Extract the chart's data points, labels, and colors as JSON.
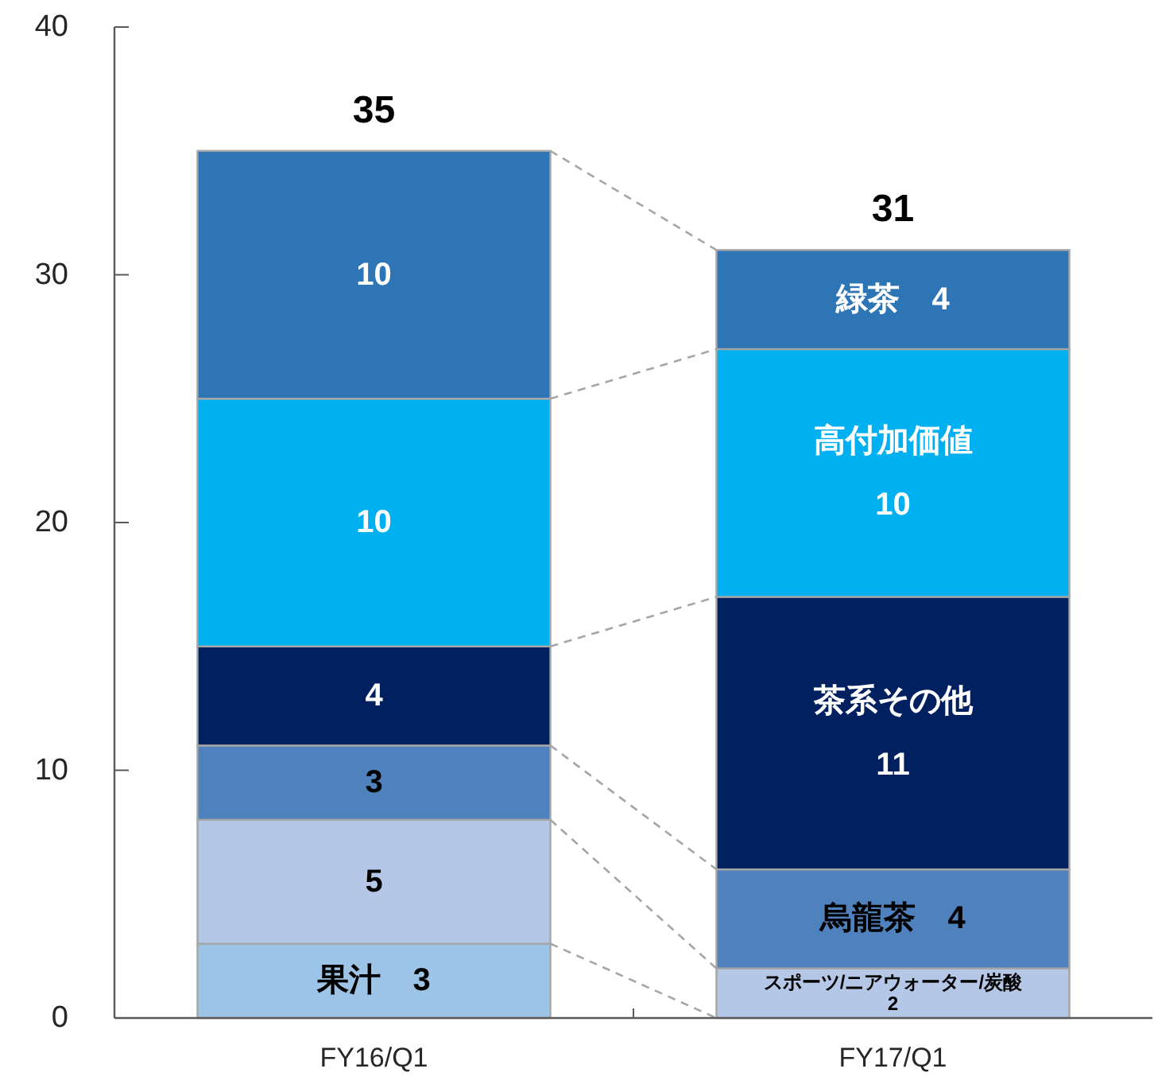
{
  "chart_data": {
    "type": "bar",
    "stacked": true,
    "categories": [
      "FY16/Q1",
      "FY17/Q1"
    ],
    "series": [
      {
        "color": "#9dc3e6",
        "values": [
          3,
          null
        ],
        "value_labels": [
          "果汁　3",
          null
        ]
      },
      {
        "color": "#b4c7e7",
        "values": [
          5,
          2
        ],
        "value_labels": [
          "5",
          "スポーツ/ニアウォーター/炭酸\n2"
        ]
      },
      {
        "color": "#4f81bd",
        "values": [
          3,
          4
        ],
        "value_labels": [
          "3",
          "烏龍茶　4"
        ]
      },
      {
        "color": "#002060",
        "values": [
          4,
          11
        ],
        "value_labels": [
          "4",
          "茶系その他\n11"
        ]
      },
      {
        "color": "#00b0f0",
        "values": [
          10,
          10
        ],
        "value_labels": [
          "10",
          "高付加価値\n10"
        ]
      },
      {
        "color": "#2e75b6",
        "values": [
          10,
          4
        ],
        "value_labels": [
          "10",
          "緑茶　4"
        ]
      }
    ],
    "totals": [
      "35",
      "31"
    ],
    "ylim": [
      0,
      40
    ],
    "yticks": [
      0,
      10,
      20,
      30,
      40
    ]
  }
}
